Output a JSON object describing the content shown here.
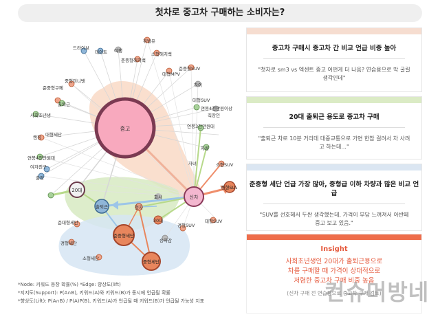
{
  "title": "첫차로 중고차 구매하는 소비자는?",
  "colors": {
    "center_node": "#f8a9be",
    "orange_node": "#e8865d",
    "salmon_node": "#efa48a",
    "green_node": "#a8d19a",
    "blue_node": "#8fb6d8",
    "gray_node": "#bbbbbb",
    "edge_orange": "#ef9a7a",
    "edge_green": "#b7d98a",
    "edge_blue": "#9cc5e8",
    "edge_gray": "#d6d6d6",
    "highlight_orange": "#f9d9c6",
    "highlight_green": "#d7eac2",
    "highlight_blue": "#d6e5f3",
    "insight_accent": "#e5573a"
  },
  "nodes": {
    "center": "중고",
    "hub": "신차",
    "age20": "20대",
    "commute": "출퇴근",
    "firstcar": "첫차",
    "company": "회사",
    "age30": "30대",
    "semi_sedan": "준중형세단",
    "mid_sedan": "중형세단",
    "mid_suv": "중형SUV",
    "labels": [
      "드라이브",
      "데이트",
      "여행",
      "휘발유",
      "소형해치백",
      "준중형해치백",
      "대형MPV",
      "준중형SUV",
      "하이",
      "중형미니밴",
      "준중형쿠페",
      "출퇴근",
      "사회초년생",
      "대형세단",
      "캠핑",
      "대형SUV",
      "연봉4천만원이상",
      "연봉3천만원대",
      "직장인",
      "차량",
      "연봉4천만원대",
      "여자친구",
      "출장",
      "자녀",
      "소형SUV",
      "준대형세단",
      "경형세단",
      "소형세단",
      "경형SUV",
      "승차감",
      "대형SUV"
    ]
  },
  "cards": [
    {
      "heading": "중고차 구매시 중고차 간 비교 언급 비중 높아",
      "quote": "\"첫차로 sm3 vs 엑센트 중고 어떤게 더 나음? 연습용으로 막 굴릴 생각인데\""
    },
    {
      "heading": "20대 출퇴근 용도로 중고차 구매",
      "quote": "\"출퇴근 차로 10분 거리데 대중교통으로 가면 한참 걸려서 차 사려고 하는데...\""
    },
    {
      "heading": "준중형 세단 언급 가장 많아, 중형급 이하 차량과 많은 비교 언급",
      "quote": "\"SUV를 선호해서 두싼 생각했는데, 가격이 부담 느껴져서 아반떼 중고 보고 있음.\""
    }
  ],
  "insight": {
    "heading": "Insight",
    "line1": "사회초년생인 20대가 출퇴근용으로",
    "line2": "차를 구매할 때 가격이 상대적으로",
    "line3": "저렴한 중고차 구매 비중 높음",
    "note": "(신차 구매 전 연습용으로 중고차 구매 검토)"
  },
  "footnotes": {
    "line1": "*Node: 키워드 등장 확률(%)  *Edge: 향상도(lift)",
    "line2": "*지지도(Support): P(A∩B), 키워드(A)와 키워드(B)가 동시에 언급될 확률",
    "line3": "*향상도(Lift): P(A∩B) / P(A)P(B), 키워드(A)가 언급될 때 키워드(B)가 언급될 가능성 지표"
  },
  "watermark": "컨슈머방네"
}
